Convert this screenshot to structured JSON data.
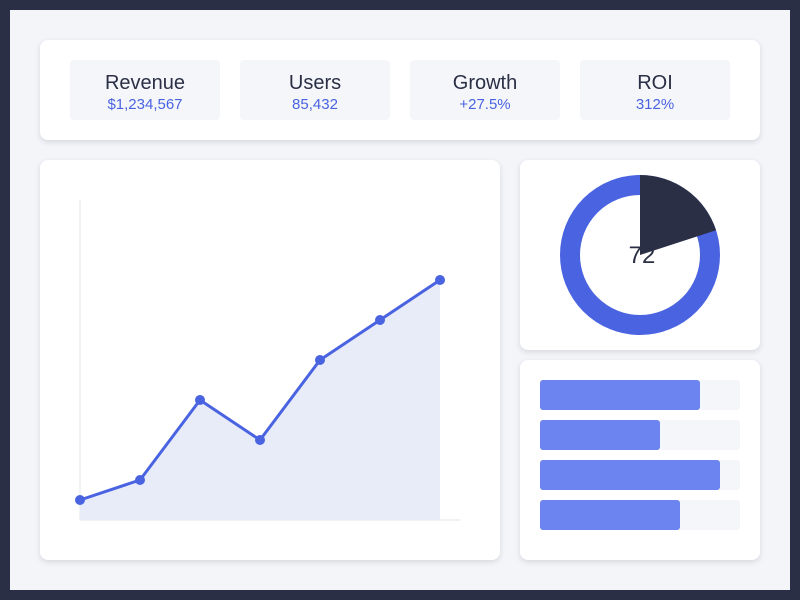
{
  "kpis": [
    {
      "label": "Revenue",
      "value": "$1,234,567"
    },
    {
      "label": "Users",
      "value": "85,432"
    },
    {
      "label": "Growth",
      "value": "+27.5%"
    },
    {
      "label": "ROI",
      "value": "312%"
    }
  ],
  "colors": {
    "accent": "#4a63e0",
    "area_fill": "#e8ecf9",
    "donut_segment": "#2a2f45",
    "bar_fill": "#6b84f0",
    "bar_track": "#f4f6fa"
  },
  "chart_data": [
    {
      "type": "area",
      "points": [
        10,
        20,
        60,
        40,
        80,
        100,
        120
      ],
      "ylim": [
        0,
        160
      ],
      "grid": false,
      "xlabel": "",
      "ylabel": ""
    },
    {
      "type": "pie",
      "center_label": "72",
      "values": [
        20,
        80
      ]
    },
    {
      "type": "bar",
      "orientation": "horizontal",
      "values": [
        80,
        60,
        90,
        70
      ],
      "xlim": [
        0,
        100
      ]
    }
  ]
}
